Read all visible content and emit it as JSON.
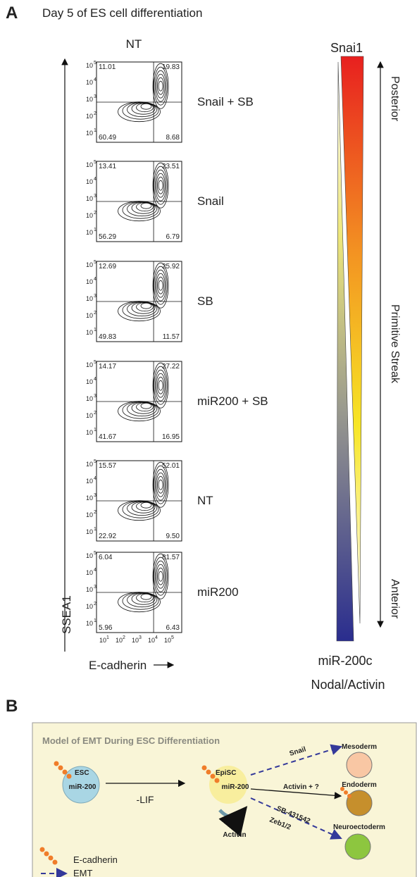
{
  "panel_a": {
    "label": "A",
    "title": "Day 5 of ES cell differentiation",
    "column_header": "NT",
    "y_axis_label": "SSEA1",
    "x_axis_label": "E-cadherin",
    "axis_tick_base": "10",
    "y_tick_exponents": [
      "5",
      "4",
      "3",
      "2",
      "1"
    ],
    "x_tick_exponents": [
      "1",
      "2",
      "3",
      "4",
      "5"
    ],
    "plots": [
      {
        "label": "Snail + SB",
        "quadrants": {
          "upper_left": "11.01",
          "upper_right": "19.83",
          "lower_left": "60.49",
          "lower_right": "8.68"
        }
      },
      {
        "label": "Snail",
        "quadrants": {
          "upper_left": "13.41",
          "upper_right": "23.51",
          "lower_left": "56.29",
          "lower_right": "6.79"
        }
      },
      {
        "label": "SB",
        "quadrants": {
          "upper_left": "12.69",
          "upper_right": "25.92",
          "lower_left": "49.83",
          "lower_right": "11.57"
        }
      },
      {
        "label": "miR200 + SB",
        "quadrants": {
          "upper_left": "14.17",
          "upper_right": "27.22",
          "lower_left": "41.67",
          "lower_right": "16.95"
        }
      },
      {
        "label": "NT",
        "quadrants": {
          "upper_left": "15.57",
          "upper_right": "52.01",
          "lower_left": "22.92",
          "lower_right": "9.50"
        }
      },
      {
        "label": "miR200",
        "quadrants": {
          "upper_left": "6.04",
          "upper_right": "81.57",
          "lower_left": "5.96",
          "lower_right": "6.43"
        }
      }
    ],
    "gradient": {
      "top_label": "Snai1",
      "bottom_label": "miR-200c",
      "bottom_sublabel": "Nodal/Activin",
      "axis_labels": [
        "Posterior",
        "Primitive Streak",
        "Anterior"
      ]
    }
  },
  "panel_b": {
    "label": "B",
    "title": "Model of EMT During ESC Differentiation",
    "esc": {
      "label": "ESC",
      "inner": "miR-200"
    },
    "episc": {
      "label": "EpiSC",
      "inner": "miR-200",
      "loop_label": "Activin"
    },
    "fates": [
      "Mesoderm",
      "Endoderm",
      "Neuroectoderm"
    ],
    "edges": {
      "lif": "-LIF",
      "snail": "Snail",
      "activin": "Activin + ?",
      "sb": "SB-431542",
      "zeb": "Zeb1/2"
    },
    "legend": {
      "ecadherin": "E-cadherin",
      "emt": "EMT"
    }
  }
}
